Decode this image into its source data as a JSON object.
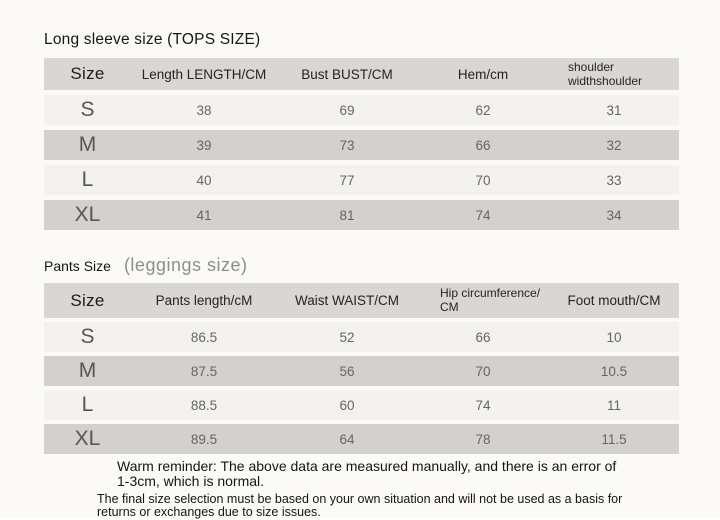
{
  "colors": {
    "page_background": "#fbfaf9",
    "table_header_bg": "#d8d7d5",
    "row_light_bg": "#f3f2f0",
    "row_dark_bg": "#d2d1cf",
    "heading_text": "#161616",
    "value_text": "#666564",
    "subtitle_text": "#8f8e8c"
  },
  "tops_section": {
    "title": "Long sleeve size (TOPS SIZE)",
    "columns": [
      "Size",
      "Length LENGTH/CM",
      "Bust BUST/CM",
      "Hem/cm",
      "shoulder widthshoulder"
    ],
    "rows": [
      {
        "size": "S",
        "values": [
          "38",
          "69",
          "62",
          "31"
        ]
      },
      {
        "size": "M",
        "values": [
          "39",
          "73",
          "66",
          "32"
        ]
      },
      {
        "size": "L",
        "values": [
          "40",
          "77",
          "70",
          "33"
        ]
      },
      {
        "size": "XL",
        "values": [
          "41",
          "81",
          "74",
          "34"
        ]
      }
    ]
  },
  "pants_section": {
    "title": "Pants Size",
    "subtitle": "(leggings size)",
    "columns": [
      "Size",
      "Pants length/cM",
      "Waist WAIST/CM",
      "Hip circumference/ CM",
      "Foot mouth/CM"
    ],
    "rows": [
      {
        "size": "S",
        "values": [
          "86.5",
          "52",
          "66",
          "10"
        ]
      },
      {
        "size": "M",
        "values": [
          "87.5",
          "56",
          "70",
          "10.5"
        ]
      },
      {
        "size": "L",
        "values": [
          "88.5",
          "60",
          "74",
          "11"
        ]
      },
      {
        "size": "XL",
        "values": [
          "89.5",
          "64",
          "78",
          "11.5"
        ]
      }
    ]
  },
  "footnote": {
    "warm_reminder": "Warm reminder: The above data are measured manually, and there is an error of 1-3cm, which is normal.",
    "final_note": "The final size selection must be based on your own situation and will not be used as a basis for returns or exchanges due to size issues."
  }
}
